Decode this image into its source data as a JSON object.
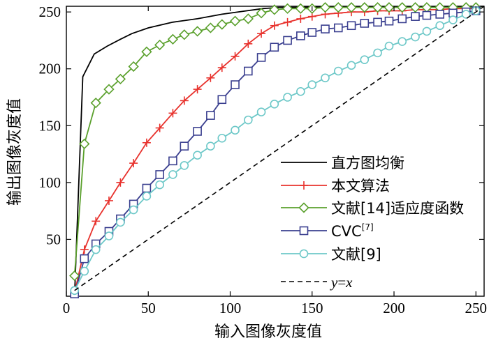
{
  "chart_data": {
    "type": "line",
    "title": "",
    "xlabel": "输入图像灰度值",
    "ylabel": "输出图像灰度值",
    "xlim": [
      0,
      255
    ],
    "ylim": [
      0,
      255
    ],
    "xticks": [
      0,
      50,
      100,
      150,
      200,
      250
    ],
    "yticks": [
      50,
      100,
      150,
      200,
      250
    ],
    "grid": false,
    "legend_position": "bottom-right",
    "series": [
      {
        "name": "直方图均衡",
        "color": "#000000",
        "marker": "none",
        "dash": "solid",
        "x": [
          5,
          10,
          17,
          25,
          33,
          40,
          50,
          65,
          80,
          95,
          110,
          120,
          130,
          255
        ],
        "y": [
          0,
          193,
          213,
          220,
          226,
          231,
          236,
          241,
          244,
          248,
          251,
          253,
          254,
          255
        ]
      },
      {
        "name": "本文算法",
        "color": "#e8322d",
        "marker": "plus",
        "dash": "solid",
        "x": [
          5,
          11,
          18,
          26,
          33,
          41,
          49,
          57,
          65,
          72,
          80,
          88,
          95,
          103,
          111,
          119,
          127,
          135,
          143,
          150,
          158,
          166,
          174,
          182,
          190,
          197,
          205,
          213,
          220,
          228,
          236,
          244,
          250
        ],
        "y": [
          3,
          41,
          66,
          84,
          100,
          117,
          135,
          148,
          161,
          172,
          182,
          192,
          201,
          211,
          222,
          231,
          238,
          241,
          244,
          246,
          248,
          249,
          250,
          250,
          251,
          251,
          251,
          252,
          252,
          252,
          253,
          253,
          253
        ]
      },
      {
        "name": "文献[14]适应度函数",
        "color": "#5aa02c",
        "marker": "diamond",
        "dash": "solid",
        "x": [
          5,
          11,
          18,
          26,
          33,
          41,
          49,
          57,
          65,
          72,
          80,
          88,
          95,
          103,
          111,
          119,
          127,
          135,
          143,
          150,
          158,
          166,
          174,
          182,
          190,
          197,
          205,
          213,
          220,
          228,
          236,
          244,
          250
        ],
        "y": [
          18,
          134,
          170,
          182,
          191,
          202,
          215,
          221,
          226,
          230,
          233,
          236,
          239,
          242,
          244,
          249,
          252,
          253,
          253,
          253,
          254,
          254,
          254,
          254,
          254,
          254,
          254,
          254,
          254,
          254,
          254,
          254,
          254
        ]
      },
      {
        "name": "CVC",
        "name_sup": "[7]",
        "color": "#3a3f8f",
        "marker": "square",
        "dash": "solid",
        "x": [
          5,
          11,
          18,
          26,
          33,
          41,
          49,
          57,
          65,
          72,
          80,
          88,
          95,
          103,
          111,
          119,
          127,
          135,
          143,
          150,
          158,
          166,
          174,
          182,
          190,
          197,
          205,
          213,
          220,
          228,
          236,
          244,
          250
        ],
        "y": [
          2,
          33,
          46,
          57,
          68,
          81,
          95,
          107,
          119,
          132,
          145,
          159,
          173,
          186,
          198,
          210,
          219,
          225,
          229,
          232,
          235,
          236,
          238,
          240,
          241,
          242,
          244,
          246,
          247,
          248,
          249,
          250,
          251
        ]
      },
      {
        "name": "文献[9]",
        "color": "#6dc8c8",
        "marker": "circle",
        "dash": "solid",
        "x": [
          5,
          11,
          18,
          26,
          33,
          41,
          49,
          57,
          65,
          72,
          80,
          88,
          95,
          103,
          111,
          119,
          127,
          135,
          143,
          150,
          158,
          166,
          174,
          182,
          190,
          197,
          205,
          213,
          220,
          228,
          236,
          244,
          250
        ],
        "y": [
          5,
          22,
          41,
          53,
          65,
          76,
          88,
          98,
          107,
          115,
          124,
          132,
          139,
          146,
          155,
          162,
          169,
          175,
          180,
          186,
          192,
          198,
          203,
          208,
          214,
          220,
          224,
          228,
          233,
          238,
          243,
          248,
          251
        ]
      },
      {
        "name": "y=x",
        "color": "#000000",
        "marker": "none",
        "dash": "dashed",
        "x": [
          5,
          255
        ],
        "y": [
          5,
          255
        ]
      }
    ]
  }
}
